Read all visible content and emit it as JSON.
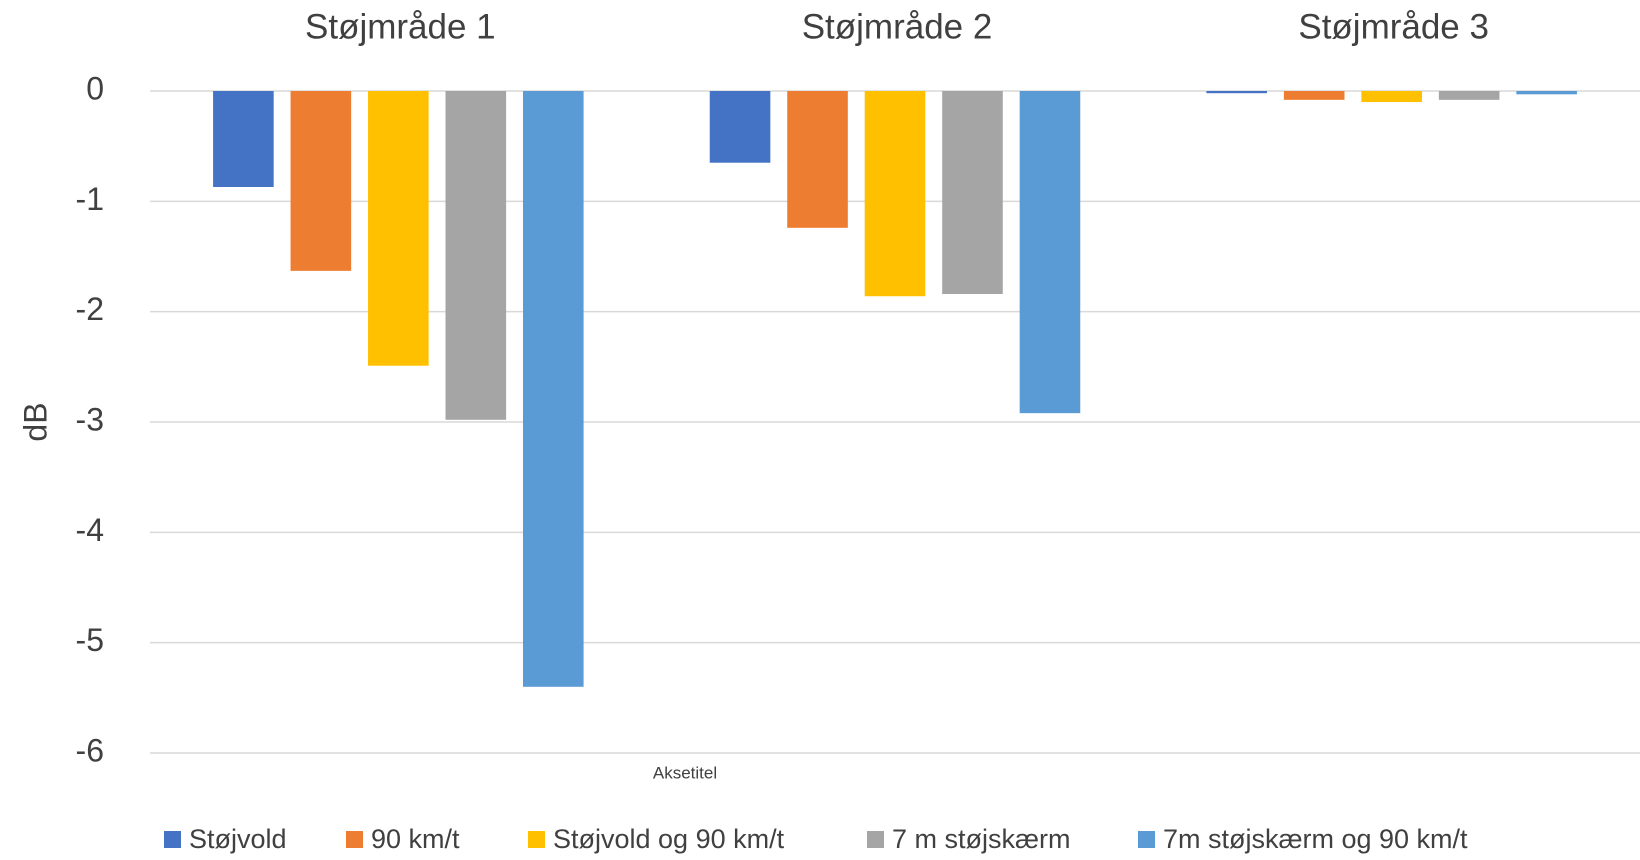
{
  "chart_data": {
    "type": "bar",
    "categories": [
      "Støjmråde 1",
      "Støjmråde 2",
      "Støjmråde 3"
    ],
    "x_label": "Aksetitel",
    "y_label": "dB",
    "series": [
      {
        "name": "Støjvold",
        "color": "#4472c4",
        "values": [
          -0.87,
          -0.65,
          -0.02
        ]
      },
      {
        "name": "90 km/t",
        "color": "#ed7d31",
        "values": [
          -1.63,
          -1.24,
          -0.08
        ]
      },
      {
        "name": "Støjvold og 90 km/t",
        "color": "#ffc000",
        "values": [
          -2.49,
          -1.86,
          -0.1
        ]
      },
      {
        "name": "7 m støjskærm",
        "color": "#a5a5a5",
        "values": [
          -2.98,
          -1.84,
          -0.08
        ]
      },
      {
        "name": "7m støjskærm og 90 km/t",
        "color": "#5b9bd5",
        "values": [
          -5.4,
          -2.92,
          -0.03
        ]
      }
    ],
    "ylim": [
      -6,
      0
    ],
    "yticks": [
      0,
      -1,
      -2,
      -3,
      -4,
      -5,
      -6
    ],
    "grid": true,
    "legend": "bottom"
  }
}
